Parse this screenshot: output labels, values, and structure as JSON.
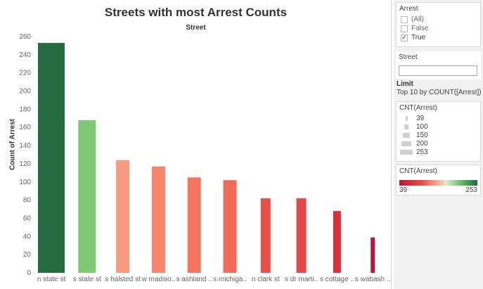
{
  "main": {
    "title": "Streets with most Arrest Counts",
    "subtitle": "Street",
    "ylabel": "Count of Arrest"
  },
  "chart_data": {
    "type": "bar",
    "title": "Streets with most Arrest Counts",
    "xlabel": "Street",
    "ylabel": "Count of Arrest",
    "ylim": [
      0,
      260
    ],
    "yticks": [
      0,
      20,
      40,
      60,
      80,
      100,
      120,
      140,
      160,
      180,
      200,
      220,
      240,
      260
    ],
    "categories": [
      "n state st",
      "s state st",
      "s halsted st",
      "w madiso..",
      "s ashland ..",
      "s michiga..",
      "n clark st",
      "s dr marti..",
      "s cottage ..",
      "s wabash .."
    ],
    "values": [
      253,
      168,
      124,
      117,
      105,
      102,
      82,
      82,
      68,
      39
    ],
    "colors": [
      "#256b40",
      "#7fc874",
      "#f79a80",
      "#f7856c",
      "#f4765f",
      "#f26a57",
      "#e84e4a",
      "#e44848",
      "#d9303d",
      "#b8173a"
    ],
    "grid": false
  },
  "sidebar": {
    "arrest_filter": {
      "title": "Arrest",
      "items": [
        {
          "label": "(All)",
          "checked": false
        },
        {
          "label": "False",
          "checked": false
        },
        {
          "label": "True",
          "checked": true
        }
      ],
      "check_glyph": "✓"
    },
    "street_filter": {
      "title": "Street",
      "value": ""
    },
    "limit": {
      "title": "Limit",
      "text": "Top 10 by COUNT([Arrest])"
    },
    "size_legend": {
      "title": "CNT(Arrest)",
      "items": [
        "39",
        "100",
        "150",
        "200",
        "253"
      ]
    },
    "color_legend": {
      "title": "CNT(Arrest)",
      "min": "39",
      "max": "253"
    }
  }
}
